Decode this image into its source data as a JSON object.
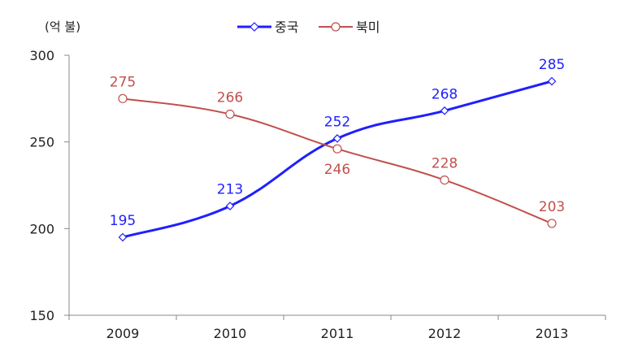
{
  "chart_data": {
    "type": "line",
    "title": "",
    "xlabel": "",
    "ylabel": "",
    "unit_label": "(억 불)",
    "categories": [
      "2009",
      "2010",
      "2011",
      "2012",
      "2013"
    ],
    "ylim": [
      150,
      300
    ],
    "yticks": [
      150,
      200,
      250,
      300
    ],
    "grid": false,
    "legend_position": "top-center",
    "series": [
      {
        "name": "중국",
        "values": [
          195,
          213,
          252,
          268,
          285
        ],
        "color": "#1f1fff",
        "marker": "diamond"
      },
      {
        "name": "북미",
        "values": [
          275,
          266,
          246,
          228,
          203
        ],
        "color": "#c0504d",
        "marker": "circle"
      }
    ]
  }
}
